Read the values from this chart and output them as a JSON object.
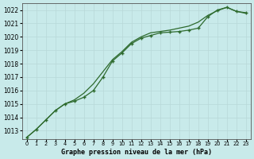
{
  "title": "Graphe pression niveau de la mer (hPa)",
  "bg_color": "#c8eaea",
  "grid_color": "#b8d8d8",
  "line_color": "#2d6a2d",
  "xlim": [
    -0.5,
    23.5
  ],
  "ylim": [
    1012.4,
    1022.5
  ],
  "yticks": [
    1013,
    1014,
    1015,
    1016,
    1017,
    1018,
    1019,
    1020,
    1021,
    1022
  ],
  "xticks": [
    0,
    1,
    2,
    3,
    4,
    5,
    6,
    7,
    8,
    9,
    10,
    11,
    12,
    13,
    14,
    15,
    16,
    17,
    18,
    19,
    20,
    21,
    22,
    23
  ],
  "series1_x": [
    0,
    1,
    2,
    3,
    4,
    5,
    6,
    7,
    8,
    9,
    10,
    11,
    12,
    13,
    14,
    15,
    16,
    17,
    18,
    19,
    20,
    21,
    22,
    23
  ],
  "series1_y": [
    1012.5,
    1013.1,
    1013.8,
    1014.5,
    1015.0,
    1015.2,
    1015.5,
    1016.0,
    1017.0,
    1018.2,
    1018.8,
    1019.5,
    1019.9,
    1020.1,
    1020.3,
    1020.35,
    1020.4,
    1020.5,
    1020.65,
    1021.5,
    1022.0,
    1022.2,
    1021.9,
    1021.8
  ],
  "series2_x": [
    0,
    1,
    2,
    3,
    4,
    5,
    6,
    7,
    8,
    9,
    10,
    11,
    12,
    13,
    14,
    15,
    16,
    17,
    18,
    19,
    20,
    21,
    22,
    23
  ],
  "series2_y": [
    1012.5,
    1013.1,
    1013.8,
    1014.5,
    1015.0,
    1015.3,
    1015.8,
    1016.5,
    1017.4,
    1018.3,
    1018.9,
    1019.6,
    1020.0,
    1020.3,
    1020.4,
    1020.5,
    1020.65,
    1020.8,
    1021.1,
    1021.6,
    1021.95,
    1022.2,
    1021.9,
    1021.75
  ]
}
